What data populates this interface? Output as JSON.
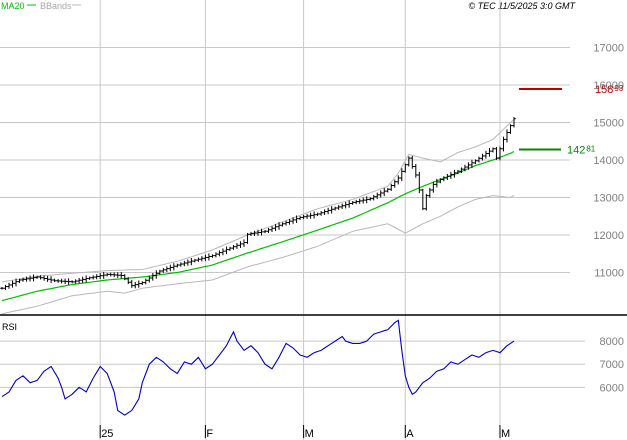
{
  "header": {
    "ma_label": "MA20",
    "bb_label": "BBands",
    "copyright": "© TEC 11/5/2025 3:0 GMT"
  },
  "colors": {
    "candle": "#000000",
    "ma": "#00c000",
    "bbands": "#b8b8b8",
    "rsi": "#0000cc",
    "target": "#c00000",
    "ma_marker": "#008800",
    "grid": "#c8c8c8",
    "axis_text": "#7f7f7f"
  },
  "price_axis": {
    "ticks": [
      {
        "value": 11000,
        "label": "11000"
      },
      {
        "value": 12000,
        "label": "12000"
      },
      {
        "value": 13000,
        "label": "13000"
      },
      {
        "value": 14000,
        "label": "14000"
      },
      {
        "value": 15000,
        "label": "15000"
      },
      {
        "value": 16000,
        "label": "16000"
      },
      {
        "value": 17000,
        "label": "17000"
      }
    ]
  },
  "markers": {
    "red": {
      "value": 15893,
      "main": "158",
      "small": "93"
    },
    "green": {
      "value": 14281,
      "main": "142",
      "small": "81"
    }
  },
  "rsi": {
    "label": "RSI",
    "ticks": [
      {
        "value": 60,
        "label": "6000"
      },
      {
        "value": 70,
        "label": "7000"
      },
      {
        "value": 80,
        "label": "8000"
      }
    ]
  },
  "x_axis": {
    "labels": [
      {
        "index": 28,
        "label": "25"
      },
      {
        "index": 58,
        "label": "F"
      },
      {
        "index": 86,
        "label": "M"
      },
      {
        "index": 115,
        "label": "A"
      },
      {
        "index": 142,
        "label": "M"
      }
    ]
  },
  "chart_data": {
    "type": "line",
    "price_ylim": [
      10000,
      18000
    ],
    "rsi_ylim": [
      45,
      90
    ],
    "days": 147,
    "anchors": {
      "close": [
        [
          0,
          10580
        ],
        [
          5,
          10800
        ],
        [
          10,
          10880
        ],
        [
          15,
          10780
        ],
        [
          20,
          10750
        ],
        [
          25,
          10860
        ],
        [
          30,
          10950
        ],
        [
          34,
          10920
        ],
        [
          37,
          10650
        ],
        [
          40,
          10730
        ],
        [
          45,
          11040
        ],
        [
          50,
          11200
        ],
        [
          55,
          11330
        ],
        [
          60,
          11450
        ],
        [
          65,
          11650
        ],
        [
          69,
          11800
        ],
        [
          70,
          12020
        ],
        [
          75,
          12100
        ],
        [
          80,
          12300
        ],
        [
          85,
          12470
        ],
        [
          90,
          12560
        ],
        [
          95,
          12720
        ],
        [
          100,
          12870
        ],
        [
          105,
          12970
        ],
        [
          110,
          13220
        ],
        [
          113,
          13520
        ],
        [
          116,
          14050
        ],
        [
          118,
          13600
        ],
        [
          119,
          13200
        ],
        [
          120,
          12700
        ],
        [
          121,
          13050
        ],
        [
          123,
          13350
        ],
        [
          125,
          13480
        ],
        [
          130,
          13700
        ],
        [
          135,
          13980
        ],
        [
          140,
          14300
        ],
        [
          141,
          14050
        ],
        [
          143,
          14550
        ],
        [
          146,
          15100
        ],
        [
          149,
          15200
        ],
        [
          150,
          15150
        ]
      ],
      "ma": [
        [
          0,
          10250
        ],
        [
          10,
          10500
        ],
        [
          20,
          10680
        ],
        [
          30,
          10800
        ],
        [
          40,
          10880
        ],
        [
          50,
          11000
        ],
        [
          60,
          11200
        ],
        [
          70,
          11520
        ],
        [
          80,
          11820
        ],
        [
          90,
          12130
        ],
        [
          100,
          12450
        ],
        [
          110,
          12860
        ],
        [
          115,
          13100
        ],
        [
          120,
          13300
        ],
        [
          125,
          13480
        ],
        [
          130,
          13650
        ],
        [
          135,
          13850
        ],
        [
          140,
          14000
        ],
        [
          145,
          14180
        ],
        [
          150,
          14420
        ]
      ],
      "bbands_upper": [
        [
          0,
          10750
        ],
        [
          10,
          10900
        ],
        [
          20,
          10980
        ],
        [
          30,
          11050
        ],
        [
          40,
          11080
        ],
        [
          50,
          11300
        ],
        [
          60,
          11600
        ],
        [
          70,
          12000
        ],
        [
          80,
          12350
        ],
        [
          90,
          12700
        ],
        [
          100,
          12950
        ],
        [
          110,
          13300
        ],
        [
          113,
          13650
        ],
        [
          116,
          14150
        ],
        [
          120,
          14050
        ],
        [
          125,
          13950
        ],
        [
          130,
          14200
        ],
        [
          135,
          14350
        ],
        [
          140,
          14550
        ],
        [
          145,
          15000
        ],
        [
          150,
          15400
        ]
      ],
      "bbands_lower": [
        [
          0,
          9900
        ],
        [
          10,
          10100
        ],
        [
          20,
          10380
        ],
        [
          30,
          10500
        ],
        [
          35,
          10450
        ],
        [
          40,
          10580
        ],
        [
          50,
          10700
        ],
        [
          60,
          10800
        ],
        [
          70,
          11150
        ],
        [
          80,
          11400
        ],
        [
          90,
          11700
        ],
        [
          100,
          12100
        ],
        [
          110,
          12300
        ],
        [
          115,
          12050
        ],
        [
          120,
          12300
        ],
        [
          125,
          12500
        ],
        [
          130,
          12750
        ],
        [
          135,
          12950
        ],
        [
          140,
          13050
        ],
        [
          145,
          13000
        ],
        [
          150,
          13300
        ]
      ],
      "rsi": [
        [
          0,
          56
        ],
        [
          2,
          58
        ],
        [
          4,
          63
        ],
        [
          6,
          65
        ],
        [
          8,
          62
        ],
        [
          10,
          63
        ],
        [
          12,
          67
        ],
        [
          14,
          69
        ],
        [
          16,
          64
        ],
        [
          17,
          60
        ],
        [
          18,
          55
        ],
        [
          20,
          57
        ],
        [
          22,
          60
        ],
        [
          24,
          58
        ],
        [
          26,
          64
        ],
        [
          28,
          69
        ],
        [
          30,
          66
        ],
        [
          32,
          58
        ],
        [
          33,
          50
        ],
        [
          35,
          48
        ],
        [
          37,
          50
        ],
        [
          39,
          55
        ],
        [
          40,
          62
        ],
        [
          42,
          70
        ],
        [
          44,
          73
        ],
        [
          46,
          71
        ],
        [
          48,
          68
        ],
        [
          50,
          66
        ],
        [
          52,
          71
        ],
        [
          54,
          70
        ],
        [
          56,
          73
        ],
        [
          58,
          68
        ],
        [
          60,
          70
        ],
        [
          62,
          74
        ],
        [
          64,
          78
        ],
        [
          66,
          84
        ],
        [
          67,
          80
        ],
        [
          69,
          76
        ],
        [
          71,
          78
        ],
        [
          73,
          75
        ],
        [
          75,
          70
        ],
        [
          77,
          68
        ],
        [
          79,
          73
        ],
        [
          81,
          79
        ],
        [
          83,
          77
        ],
        [
          85,
          74
        ],
        [
          87,
          73
        ],
        [
          89,
          75
        ],
        [
          91,
          76
        ],
        [
          93,
          78
        ],
        [
          95,
          80
        ],
        [
          97,
          82
        ],
        [
          98,
          80
        ],
        [
          100,
          79
        ],
        [
          102,
          79
        ],
        [
          104,
          80
        ],
        [
          106,
          83
        ],
        [
          108,
          84
        ],
        [
          110,
          85
        ],
        [
          112,
          88
        ],
        [
          113,
          89
        ],
        [
          114,
          76
        ],
        [
          115,
          65
        ],
        [
          116,
          60
        ],
        [
          117,
          57
        ],
        [
          118,
          58
        ],
        [
          120,
          62
        ],
        [
          122,
          64
        ],
        [
          124,
          67
        ],
        [
          126,
          68
        ],
        [
          128,
          71
        ],
        [
          130,
          70
        ],
        [
          132,
          72
        ],
        [
          134,
          74
        ],
        [
          136,
          73
        ],
        [
          138,
          75
        ],
        [
          140,
          76
        ],
        [
          142,
          75
        ],
        [
          144,
          78
        ],
        [
          146,
          80
        ],
        [
          148,
          81
        ],
        [
          150,
          79
        ]
      ]
    }
  }
}
